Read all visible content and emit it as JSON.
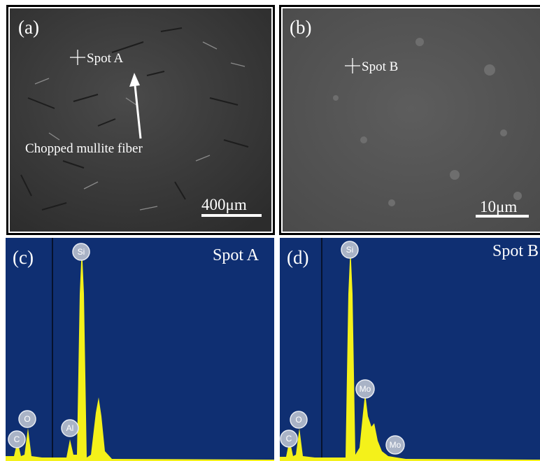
{
  "panels": [
    {
      "label": "(a)",
      "spot": "Spot A",
      "annotation": "Chopped  mullite fiber",
      "scale_bar": "400μm"
    },
    {
      "label": "(b)",
      "spot": "Spot B",
      "scale_bar": "10μm"
    },
    {
      "label": "(c)",
      "spot": "Spot A",
      "peaks": [
        "Si",
        "O",
        "C",
        "Al"
      ]
    },
    {
      "label": "(d)",
      "spot": "Spot B",
      "peaks": [
        "Si",
        "Mo",
        "O",
        "C",
        "Mo"
      ]
    }
  ]
}
